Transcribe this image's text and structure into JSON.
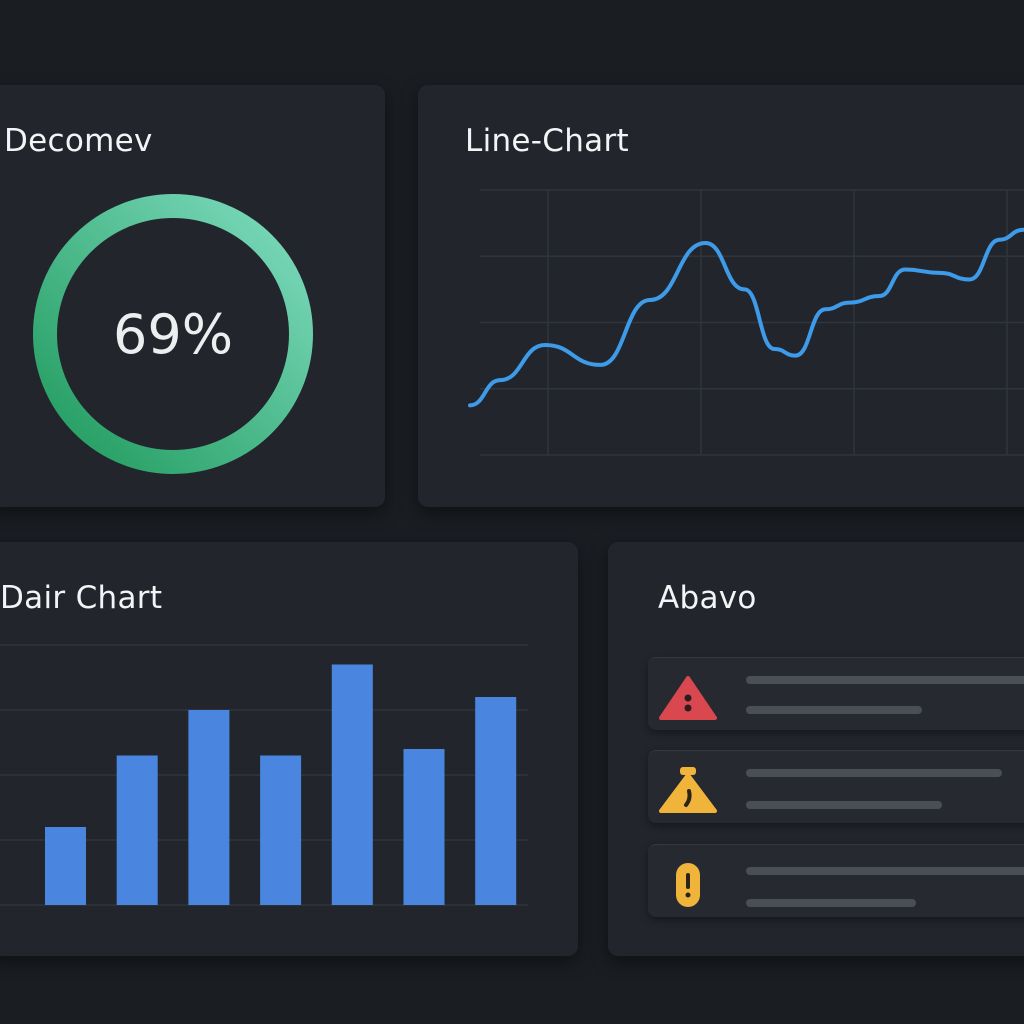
{
  "gauge": {
    "title": "Decomev",
    "value_label": "69%",
    "value": 69,
    "colors": [
      "#1f9a5c",
      "#6fd6b4"
    ]
  },
  "line_chart": {
    "title": "Line-Chart"
  },
  "bar_chart_panel": {
    "title": "Dair Chart"
  },
  "alerts": {
    "title": "Abavo",
    "items": [
      {
        "icon": "warning-triangle-red-icon",
        "color": "#d9474f"
      },
      {
        "icon": "warning-triangle-yellow-icon",
        "color": "#f0b43a"
      },
      {
        "icon": "exclamation-badge-icon",
        "color": "#f0b43a"
      }
    ]
  },
  "chart_data": [
    {
      "type": "line",
      "title": "Line-Chart",
      "color": "#3d9be9",
      "grid": true,
      "ylim": [
        0,
        4
      ],
      "xlim": [
        0,
        3.6
      ],
      "x": [
        0,
        0.2,
        0.5,
        0.87,
        1.2,
        1.57,
        1.83,
        2.03,
        2.17,
        2.37,
        2.53,
        2.73,
        2.9,
        3.13,
        3.33,
        3.53,
        3.69
      ],
      "y": [
        0.75,
        1.13,
        1.66,
        1.36,
        2.34,
        3.2,
        2.5,
        1.6,
        1.5,
        2.2,
        2.3,
        2.4,
        2.8,
        2.75,
        2.65,
        3.25,
        3.4
      ]
    },
    {
      "type": "bar",
      "title": "Dair Chart",
      "color": "#4a86e0",
      "grid": true,
      "ylim": [
        0,
        4
      ],
      "values": [
        1.2,
        2.3,
        3.0,
        2.3,
        3.7,
        2.4,
        3.2
      ]
    }
  ]
}
